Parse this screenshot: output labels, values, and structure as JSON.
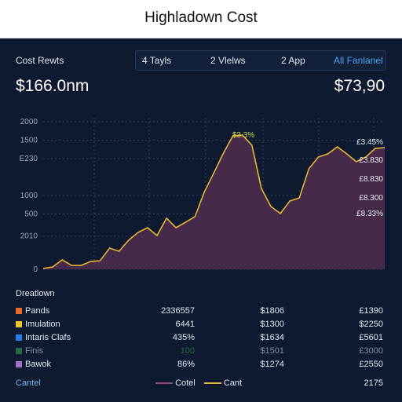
{
  "header": {
    "title": "Highladown Cost"
  },
  "toolbar": {
    "label": "Cost Rewts",
    "tabs": [
      "4 Tayls",
      "2 Vlelws",
      "2 App",
      "All Fanlanel"
    ]
  },
  "summary": {
    "left": "$166.0nm",
    "right": "$73,90"
  },
  "chart_data": {
    "type": "area",
    "ylim": [
      0,
      2000
    ],
    "yticks": [
      {
        "value": 0,
        "label": "0"
      },
      {
        "value": 450,
        "label": "2010"
      },
      {
        "value": 750,
        "label": "500"
      },
      {
        "value": 1000,
        "label": "1000"
      },
      {
        "value": 1500,
        "label": "E230"
      },
      {
        "value": 1750,
        "label": "1500"
      },
      2000
    ],
    "grid": true,
    "series": [
      {
        "name": "Cant",
        "color": "#e8b630",
        "fill": "#4b2d4c",
        "values": [
          11,
          32,
          128,
          53,
          53,
          106,
          117,
          287,
          245,
          394,
          500,
          564,
          457,
          692,
          564,
          638,
          713,
          1053,
          1309,
          1575,
          1809,
          1819,
          1681,
          1096,
          851,
          755,
          926,
          968,
          1362,
          1521,
          1564,
          1660,
          1564,
          1458,
          1521,
          1638,
          1649
        ]
      }
    ],
    "area_legend": {
      "name": "Cotel",
      "color": "#8a4a7a"
    },
    "annotations": [
      "$3.3%",
      "£3.45%",
      "£3.830",
      "£8.830",
      "£8.300",
      "£8.33%"
    ]
  },
  "table": {
    "title": "Dreatlown",
    "rows": [
      {
        "color": "#e86a2a",
        "cells": [
          "Pands",
          "2336557",
          "$1806",
          "£1390"
        ]
      },
      {
        "color": "#e8c22a",
        "cells": [
          "Imulation",
          "6441",
          "$1300",
          "$2250"
        ]
      },
      {
        "color": "#2a7ae8",
        "cells": [
          "Intaris Clafs",
          "435%",
          "$1634",
          "£5601"
        ]
      },
      {
        "color": "#3aa85a",
        "cells": [
          "Finis",
          "100",
          "$1501",
          "£3000"
        ]
      },
      {
        "color": "#a070d0",
        "cells": [
          "Bawok",
          "86%",
          "$1274",
          "£2550"
        ]
      }
    ]
  },
  "footer": {
    "left": "Cantel",
    "right": "2175"
  }
}
